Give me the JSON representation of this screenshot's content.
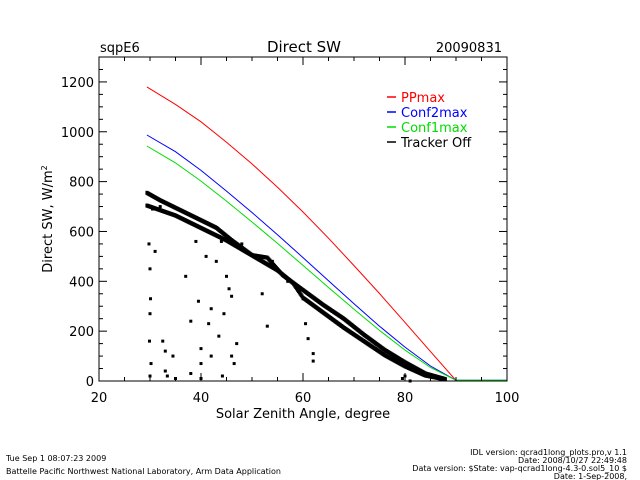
{
  "header": {
    "site": "sqpE6",
    "title": "Direct SW",
    "date": "20090831"
  },
  "footer": {
    "timestamp": "Tue Sep  1 08:07:23 2009",
    "lab": "Battelle Pacific Northwest National Laboratory, Arm Data Application",
    "idl_version": "IDL version: qcrad1long_plots.pro,v 1.1",
    "idl_date": "Date: 2008/10/27 22:49:48",
    "data_version": "Data version: $State: vap-qcrad1long-4.3-0.sol5_10 $",
    "data_date": "Date: 1-Sep-2008,"
  },
  "chart_data": {
    "type": "line",
    "title": "Direct SW",
    "xlabel": "Solar Zenith Angle, degree",
    "ylabel": "Direct SW, W/m",
    "ylabel_sup": "2",
    "xlim": [
      20,
      100
    ],
    "ylim": [
      0,
      1300
    ],
    "xticks": [
      20,
      40,
      60,
      80,
      100
    ],
    "yticks": [
      0,
      200,
      400,
      600,
      800,
      1000,
      1200
    ],
    "xtick_labels": [
      "20",
      "40",
      "60",
      "80",
      "100"
    ],
    "ytick_labels": [
      "0",
      "200",
      "400",
      "600",
      "800",
      "1000",
      "1200"
    ],
    "x_minor_step": 5,
    "y_minor_step": 50,
    "grid": false,
    "legend_position": "top-right",
    "series": [
      {
        "name": "PPmax",
        "color": "#ff0000",
        "x": [
          29.4,
          35,
          40,
          45,
          50,
          55,
          60,
          65,
          70,
          75,
          80,
          85,
          90,
          95,
          100
        ],
        "y": [
          1180,
          1110,
          1040,
          958,
          871,
          777,
          678,
          573,
          463,
          351,
          235,
          118,
          2,
          2,
          2
        ]
      },
      {
        "name": "Conf2max",
        "color": "#0000ff",
        "x": [
          29.4,
          35,
          40,
          45,
          50,
          55,
          60,
          65,
          70,
          75,
          80,
          85,
          90,
          95,
          100
        ],
        "y": [
          987,
          920,
          845,
          762,
          676,
          587,
          495,
          402,
          310,
          220,
          136,
          60,
          3,
          3,
          3
        ]
      },
      {
        "name": "Conf1max",
        "color": "#00dd00",
        "x": [
          29.4,
          35,
          40,
          45,
          50,
          55,
          60,
          65,
          70,
          75,
          80,
          85,
          90,
          95,
          100
        ],
        "y": [
          943,
          875,
          802,
          722,
          638,
          552,
          464,
          375,
          288,
          203,
          124,
          54,
          3,
          3,
          3
        ]
      },
      {
        "name": "Tracker Off",
        "color": "#000000",
        "kind": "scatter",
        "band_upper": {
          "x": [
            29.4,
            32,
            35,
            40,
            43,
            46,
            50,
            53,
            56,
            60,
            64,
            68,
            72,
            76,
            80,
            84,
            88
          ],
          "y": [
            750,
            720,
            690,
            640,
            610,
            560,
            500,
            490,
            420,
            360,
            300,
            245,
            180,
            120,
            70,
            25,
            2
          ]
        },
        "band_lower": {
          "x": [
            29.4,
            35,
            40,
            45,
            50,
            55,
            58,
            60,
            64,
            68,
            72,
            76,
            80,
            84,
            88
          ],
          "y": [
            700,
            660,
            610,
            560,
            500,
            440,
            390,
            330,
            270,
            210,
            155,
            100,
            55,
            18,
            2
          ]
        },
        "scatter_points": [
          [
            29.8,
            550
          ],
          [
            30,
            450
          ],
          [
            30.1,
            330
          ],
          [
            30,
            270
          ],
          [
            29.9,
            160
          ],
          [
            30.2,
            70
          ],
          [
            30,
            20
          ],
          [
            30.5,
            690
          ],
          [
            31,
            520
          ],
          [
            32,
            700
          ],
          [
            32.5,
            160
          ],
          [
            33,
            120
          ],
          [
            33,
            40
          ],
          [
            33.4,
            20
          ],
          [
            34.5,
            100
          ],
          [
            35,
            10
          ],
          [
            37,
            420
          ],
          [
            38,
            240
          ],
          [
            38,
            30
          ],
          [
            39,
            560
          ],
          [
            39.5,
            320
          ],
          [
            40,
            130
          ],
          [
            40,
            70
          ],
          [
            40,
            10
          ],
          [
            41,
            500
          ],
          [
            41.5,
            230
          ],
          [
            42,
            290
          ],
          [
            42,
            100
          ],
          [
            43,
            480
          ],
          [
            43.5,
            180
          ],
          [
            44,
            560
          ],
          [
            44.2,
            20
          ],
          [
            44.5,
            270
          ],
          [
            45,
            420
          ],
          [
            45.5,
            370
          ],
          [
            46,
            340
          ],
          [
            46,
            100
          ],
          [
            46.5,
            70
          ],
          [
            47,
            150
          ],
          [
            48,
            550
          ],
          [
            52,
            350
          ],
          [
            53,
            220
          ],
          [
            54,
            480
          ],
          [
            57,
            400
          ],
          [
            60,
            330
          ],
          [
            60.5,
            230
          ],
          [
            61,
            170
          ],
          [
            62,
            110
          ],
          [
            62,
            80
          ],
          [
            79.5,
            10
          ],
          [
            80,
            20
          ],
          [
            81,
            0
          ]
        ]
      }
    ]
  }
}
